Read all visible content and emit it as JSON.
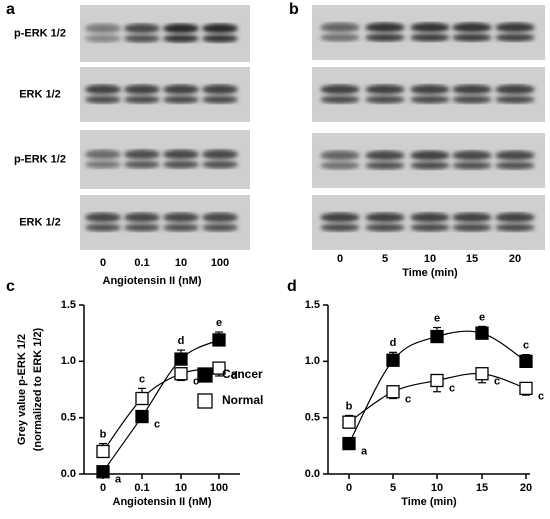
{
  "panels": {
    "a": {
      "letter": "a",
      "rows": [
        "p-ERK 1/2",
        "ERK 1/2",
        "p-ERK 1/2",
        "ERK 1/2"
      ],
      "lanes": [
        "0",
        "0.1",
        "10",
        "100"
      ],
      "xlabel": "Angiotensin II (nM)"
    },
    "b": {
      "letter": "b",
      "lanes": [
        "0",
        "5",
        "10",
        "15",
        "20"
      ],
      "xlabel": "Time (min)"
    }
  },
  "chart_data": [
    {
      "type": "line",
      "letter": "c",
      "ylabel": [
        "Grey value p-ERK 1/2",
        "(normalized to ERK 1/2)"
      ],
      "xlabel": "Angiotensin II (nM)",
      "categories": [
        "0",
        "0.1",
        "10",
        "100"
      ],
      "ylim": [
        0,
        1.5
      ],
      "yticks": [
        {
          "value": 0,
          "label": "0.0"
        },
        {
          "value": 0.5,
          "label": "0.5"
        },
        {
          "value": 1,
          "label": "1.0"
        },
        {
          "value": 1.5,
          "label": "1.5"
        }
      ],
      "legend": "right",
      "series": [
        {
          "name": "Cancer",
          "color": "#000000",
          "values": [
            0.02,
            0.51,
            1.02,
            1.19
          ],
          "errors": [
            0.03,
            0.04,
            0.08,
            0.07
          ],
          "letters": [
            "a",
            "c",
            "d",
            "e"
          ]
        },
        {
          "name": "Normal",
          "color": "#ffffff",
          "values": [
            0.2,
            0.67,
            0.89,
            0.94
          ],
          "errors": [
            0.07,
            0.09,
            0.06,
            0.07
          ],
          "letters": [
            "b",
            "c",
            "c",
            "d"
          ]
        }
      ]
    },
    {
      "type": "line",
      "letter": "d",
      "xlabel": "Time (min)",
      "categories": [
        "0",
        "5",
        "10",
        "15",
        "20"
      ],
      "ylim": [
        0,
        1.5
      ],
      "yticks": [
        {
          "value": 0,
          "label": "0.0"
        },
        {
          "value": 0.5,
          "label": "0.5"
        },
        {
          "value": 1,
          "label": "1.0"
        },
        {
          "value": 1.5,
          "label": "1.5"
        }
      ],
      "series": [
        {
          "name": "Cancer",
          "color": "#000000",
          "values": [
            0.27,
            1.01,
            1.22,
            1.25,
            1.0
          ],
          "errors": [
            0.05,
            0.07,
            0.08,
            0.06,
            0.06
          ],
          "letters": [
            "a",
            "d",
            "e",
            "e",
            "c"
          ]
        },
        {
          "name": "Normal",
          "color": "#ffffff",
          "values": [
            0.46,
            0.73,
            0.83,
            0.89,
            0.76
          ],
          "errors": [
            0.06,
            0.06,
            0.1,
            0.08,
            0.06
          ],
          "letters": [
            "b",
            "c",
            "c",
            "c",
            "c"
          ]
        }
      ]
    }
  ]
}
